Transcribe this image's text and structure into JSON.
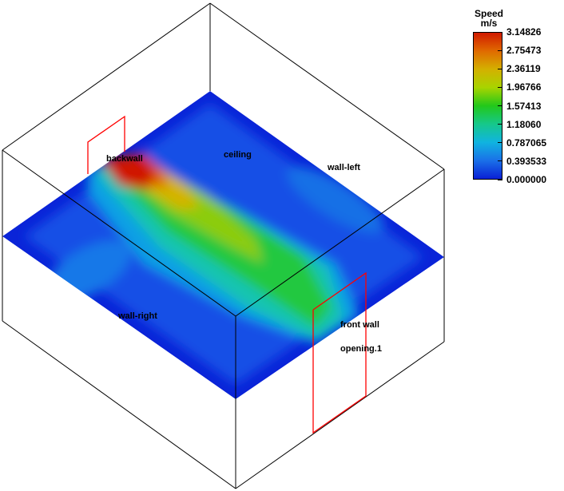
{
  "legend": {
    "title": "Speed",
    "unit": "m/s",
    "ticks": [
      "3.14826",
      "2.75473",
      "2.36119",
      "1.96766",
      "1.57413",
      "1.18060",
      "0.787065",
      "0.393533",
      "0.000000"
    ],
    "colors": [
      "#d01a00",
      "#e06a00",
      "#d4b000",
      "#a8d400",
      "#22c81a",
      "#16c88a",
      "#10b4e0",
      "#1a70e8",
      "#0a20d6"
    ]
  },
  "labels": {
    "back_wall": "backwall",
    "ceiling": "ceiling",
    "wall_left": "wall-left",
    "wall_right": "wall-right",
    "front_wall": "front wall",
    "opening": "opening.1"
  }
}
